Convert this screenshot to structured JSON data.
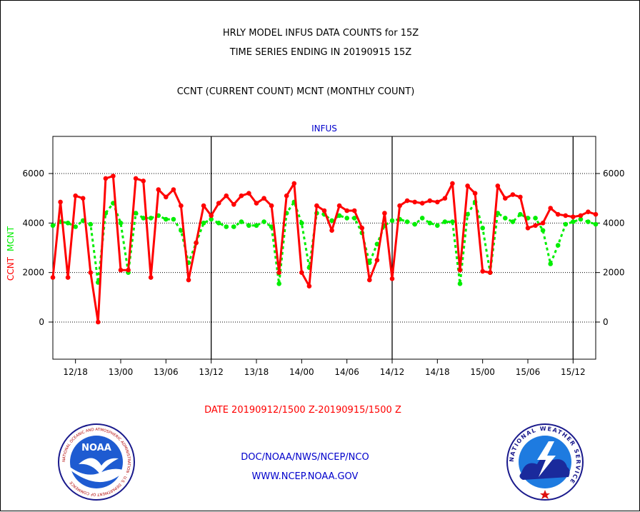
{
  "header": {
    "title_line1": "HRLY MODEL INFUS DATA COUNTS for 15Z",
    "title_line2": "TIME SERIES ENDING IN 20190915 15Z",
    "title_line3": "CCNT (CURRENT COUNT) MCNT (MONTHLY COUNT)"
  },
  "footer": {
    "date_range": "DATE 20190912/1500 Z-20190915/1500 Z",
    "credit_line1": "DOC/NOAA/NWS/NCEP/NCO",
    "credit_line2": "WWW.NCEP.NOAA.GOV"
  },
  "logos": {
    "left": {
      "name": "noaa-logo",
      "text": "NOAA",
      "ring_text": "NATIONAL OCEANIC AND ATMOSPHERIC ADMINISTRATION · U.S. DEPARTMENT OF COMMERCE"
    },
    "right": {
      "name": "nws-logo",
      "ring_text": "NATIONAL WEATHER SERVICE"
    }
  },
  "colors": {
    "ccnt": "#ff0000",
    "mcnt": "#00ee00",
    "plot_title": "#0000cc",
    "axes": "#000000"
  },
  "chart_data": {
    "type": "line",
    "title": "INFUS",
    "xlabel": "",
    "ylabel_left": [
      "CCNT",
      "MCNT"
    ],
    "ylim": [
      -1500,
      7500
    ],
    "yticks": [
      0,
      2000,
      4000,
      6000
    ],
    "grid": "dotted horizontal at y ticks",
    "x_tick_labels": [
      "12/18",
      "13/00",
      "13/06",
      "13/12",
      "13/18",
      "14/00",
      "14/06",
      "14/12",
      "14/18",
      "15/00",
      "15/06",
      "15/12"
    ],
    "x_tick_hours": [
      3,
      9,
      15,
      21,
      27,
      33,
      39,
      45,
      51,
      57,
      63,
      69
    ],
    "day_boundary_hours": [
      21,
      45,
      69
    ],
    "x_range_hours": [
      0,
      72
    ],
    "x_unit": "hours since 20190912/1500 Z",
    "series": [
      {
        "name": "CCNT",
        "values": [
          1800,
          4850,
          1800,
          5100,
          5000,
          2000,
          0,
          5800,
          5900,
          2100,
          2100,
          5800,
          5700,
          1800,
          5350,
          5050,
          5350,
          4700,
          1700,
          3200,
          4700,
          4300,
          4800,
          5100,
          4750,
          5100,
          5200,
          4800,
          5000,
          4700,
          2000,
          5100,
          5600,
          2000,
          1450,
          4700,
          4500,
          3700,
          4700,
          4500,
          4500,
          3800,
          1700,
          2500,
          4400,
          1750,
          4700,
          4900,
          4850,
          4800,
          4900,
          4850,
          5000,
          5600,
          2100,
          5500,
          5200,
          2050,
          2000,
          5500,
          5000,
          5150,
          5050,
          3800,
          3900,
          4000,
          4600,
          4350,
          4300,
          4250,
          4300,
          4450,
          4350
        ]
      },
      {
        "name": "MCNT",
        "values": [
          3900,
          4050,
          4000,
          3850,
          4100,
          3950,
          1600,
          4400,
          4800,
          4000,
          2000,
          4400,
          4200,
          4200,
          4300,
          4150,
          4150,
          3700,
          2400,
          3200,
          4000,
          4150,
          4000,
          3850,
          3850,
          4050,
          3900,
          3900,
          4050,
          3850,
          1550,
          4400,
          4850,
          4000,
          2200,
          4400,
          4350,
          4100,
          4300,
          4200,
          4200,
          3600,
          2400,
          3150,
          3900,
          4100,
          4150,
          4050,
          3950,
          4200,
          4000,
          3900,
          4050,
          4050,
          1550,
          4350,
          4850,
          3800,
          2000,
          4400,
          4200,
          4050,
          4350,
          4200,
          4200,
          3700,
          2350,
          3100,
          3950,
          4050,
          4150,
          4050,
          3950
        ]
      }
    ]
  }
}
